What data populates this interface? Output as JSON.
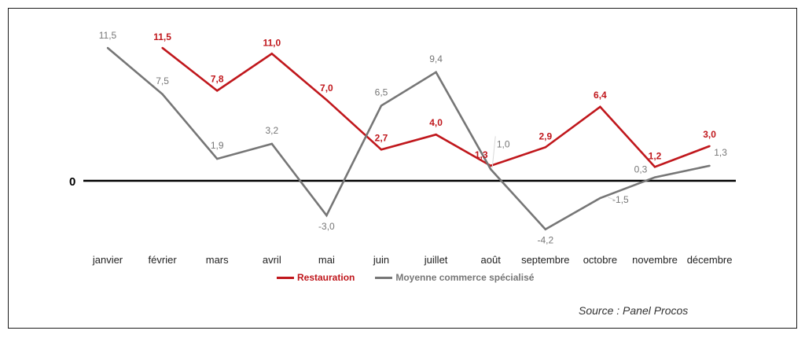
{
  "colors": {
    "restauration": "#c0171c",
    "moyenne": "#767676",
    "axis": "#000000",
    "tick_text": "#222222"
  },
  "chart_data": {
    "type": "line",
    "categories": [
      "janvier",
      "février",
      "mars",
      "avril",
      "mai",
      "juin",
      "juillet",
      "août",
      "septembre",
      "octobre",
      "novembre",
      "décembre"
    ],
    "zero_label": "0",
    "ylim": [
      -4.5,
      12.5
    ],
    "grid": false,
    "legend_position": "bottom",
    "series": [
      {
        "name": "Restauration",
        "color": "#c0171c",
        "values": [
          null,
          11.5,
          7.8,
          11.0,
          7.0,
          2.7,
          4.0,
          1.3,
          2.9,
          6.4,
          1.2,
          3.0
        ],
        "labels": [
          "",
          "11,5",
          "7,8",
          "11,0",
          "7,0",
          "2,7",
          "4,0",
          "1,3",
          "2,9",
          "6,4",
          "1,2",
          "3,0"
        ]
      },
      {
        "name": "Moyenne commerce spécialisé",
        "color": "#767676",
        "values": [
          11.5,
          7.5,
          1.9,
          3.2,
          -3.0,
          6.5,
          9.4,
          1.0,
          -4.2,
          -1.5,
          0.3,
          1.3
        ],
        "labels": [
          "11,5",
          "7,5",
          "1,9",
          "3,2",
          "-3,0",
          "6,5",
          "9,4",
          "1,0",
          "-4,2",
          "-1,5",
          "0,3",
          "1,3"
        ]
      }
    ],
    "source": "Source : Panel Procos"
  }
}
